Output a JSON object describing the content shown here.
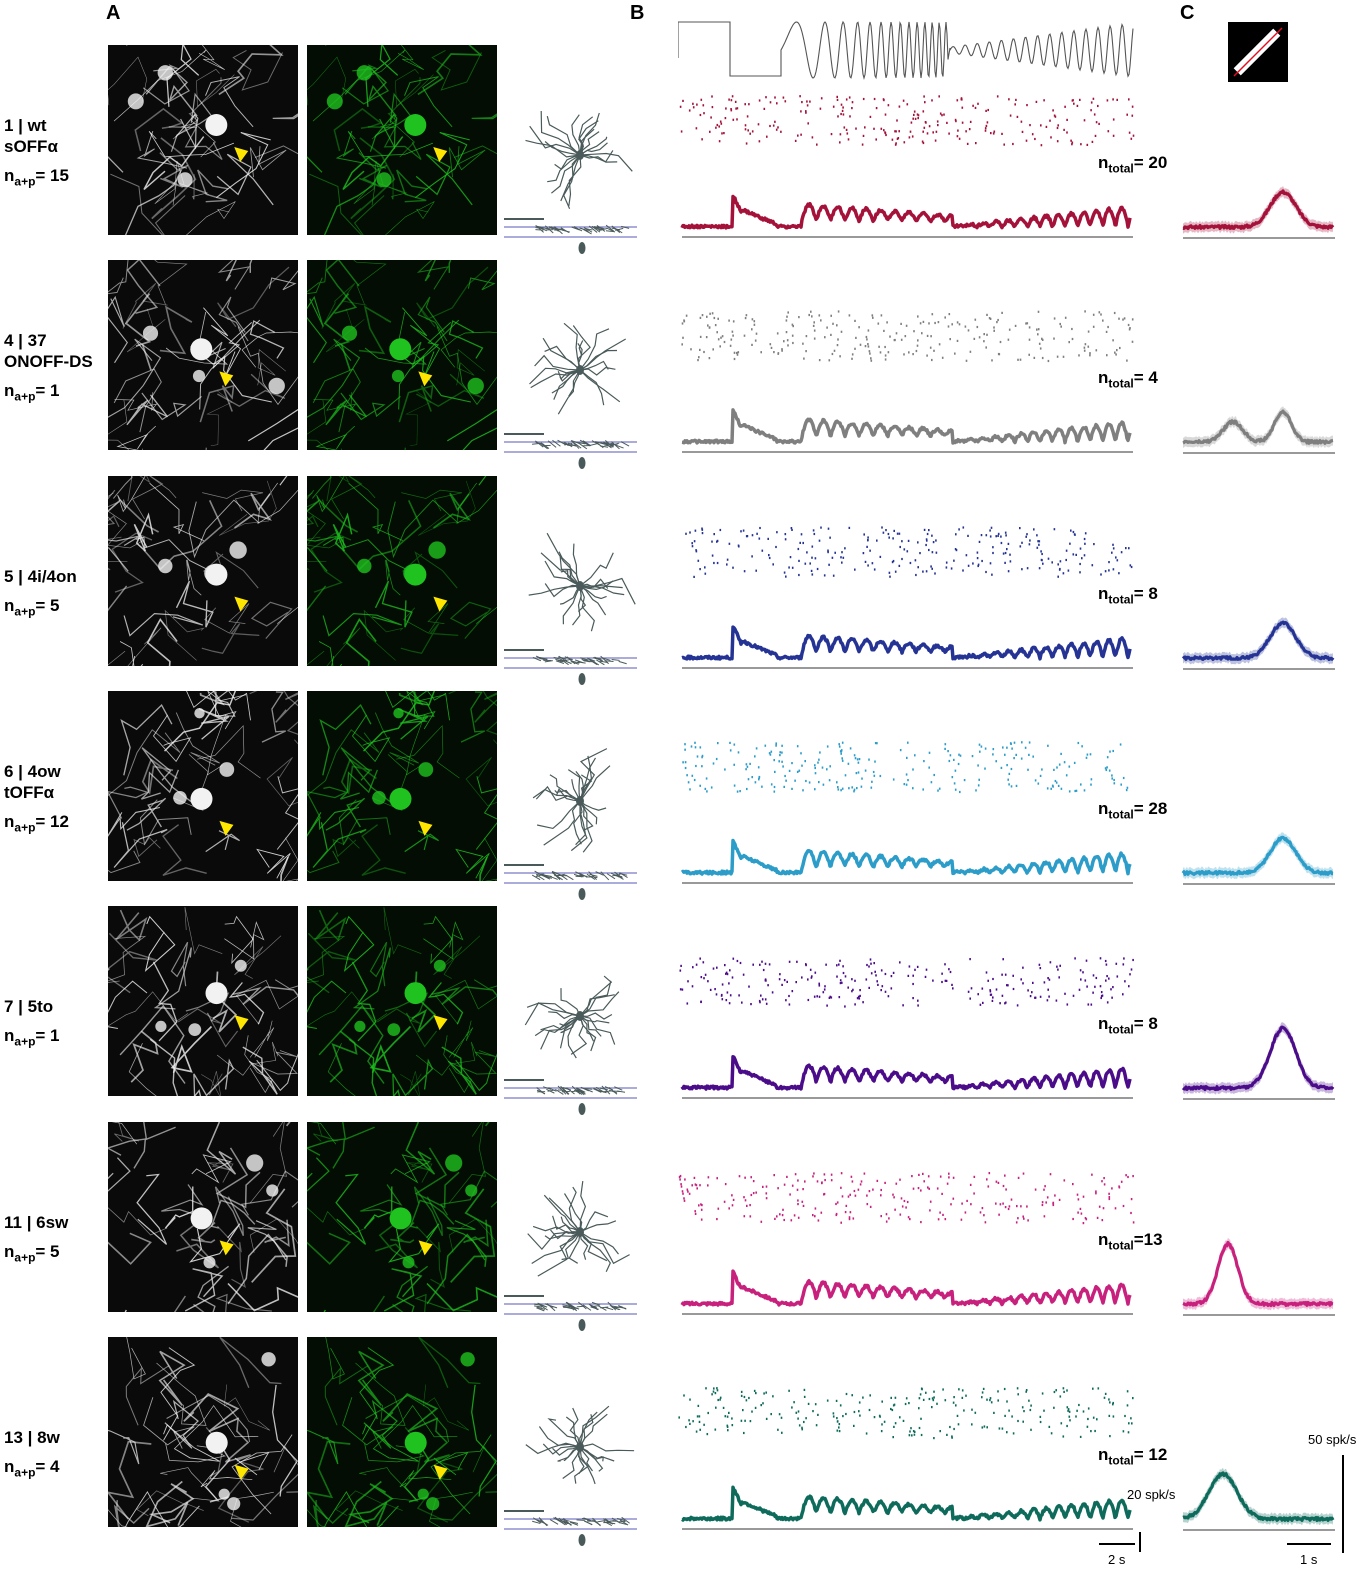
{
  "panels": {
    "a": "A",
    "b": "B",
    "c": "C"
  },
  "rows": [
    {
      "id": "1",
      "name": "1 | wt",
      "subtype": "sOFFα",
      "n_label": "n",
      "n_sub": "a+p",
      "n_value": "= 15",
      "ntotal_value": "= 20",
      "color": "#a4123a",
      "has_second_line": true
    },
    {
      "id": "4",
      "name": "4 | 37",
      "subtype": "ONOFF-DS",
      "n_label": "n",
      "n_sub": "a+p",
      "n_value": "= 1",
      "ntotal_value": "= 4",
      "color": "#7f7f7f",
      "has_second_line": true
    },
    {
      "id": "5",
      "name": "5 | 4i/4on",
      "subtype": "",
      "n_label": "n",
      "n_sub": "a+p",
      "n_value": "= 5",
      "ntotal_value": "= 8",
      "color": "#253494",
      "has_second_line": false
    },
    {
      "id": "6",
      "name": "6 | 4ow",
      "subtype": "tOFFα",
      "n_label": "n",
      "n_sub": "a+p",
      "n_value": "= 12",
      "ntotal_value": "= 28",
      "color": "#2c9cc8",
      "has_second_line": true
    },
    {
      "id": "7",
      "name": "7 | 5to",
      "subtype": "",
      "n_label": "n",
      "n_sub": "a+p",
      "n_value": "= 1",
      "ntotal_value": "= 8",
      "color": "#4b0c8a",
      "has_second_line": false
    },
    {
      "id": "11",
      "name": "11 | 6sw",
      "subtype": "",
      "n_label": "n",
      "n_sub": "a+p",
      "n_value": "= 5",
      "ntotal_value": "=13",
      "color": "#c8217d",
      "has_second_line": false
    },
    {
      "id": "13",
      "name": "13 | 8w",
      "subtype": "",
      "n_label": "n",
      "n_sub": "a+p",
      "n_value": "= 4",
      "ntotal_value": "= 12",
      "color": "#0e6b5c",
      "has_second_line": false
    }
  ],
  "ntotal_label": "n",
  "ntotal_sub": "total",
  "scale_bars": {
    "b_rate": "20 spk/s",
    "b_time": "2 s",
    "c_rate": "50 spk/s",
    "c_time": "1 s"
  },
  "colors": {
    "micro_green": "#1fc21f",
    "micro_white": "#f2f2f2",
    "arrowhead": "#ffe600",
    "morphology": "#4a5a5a",
    "ipl_bands": "#8f8fd0"
  }
}
